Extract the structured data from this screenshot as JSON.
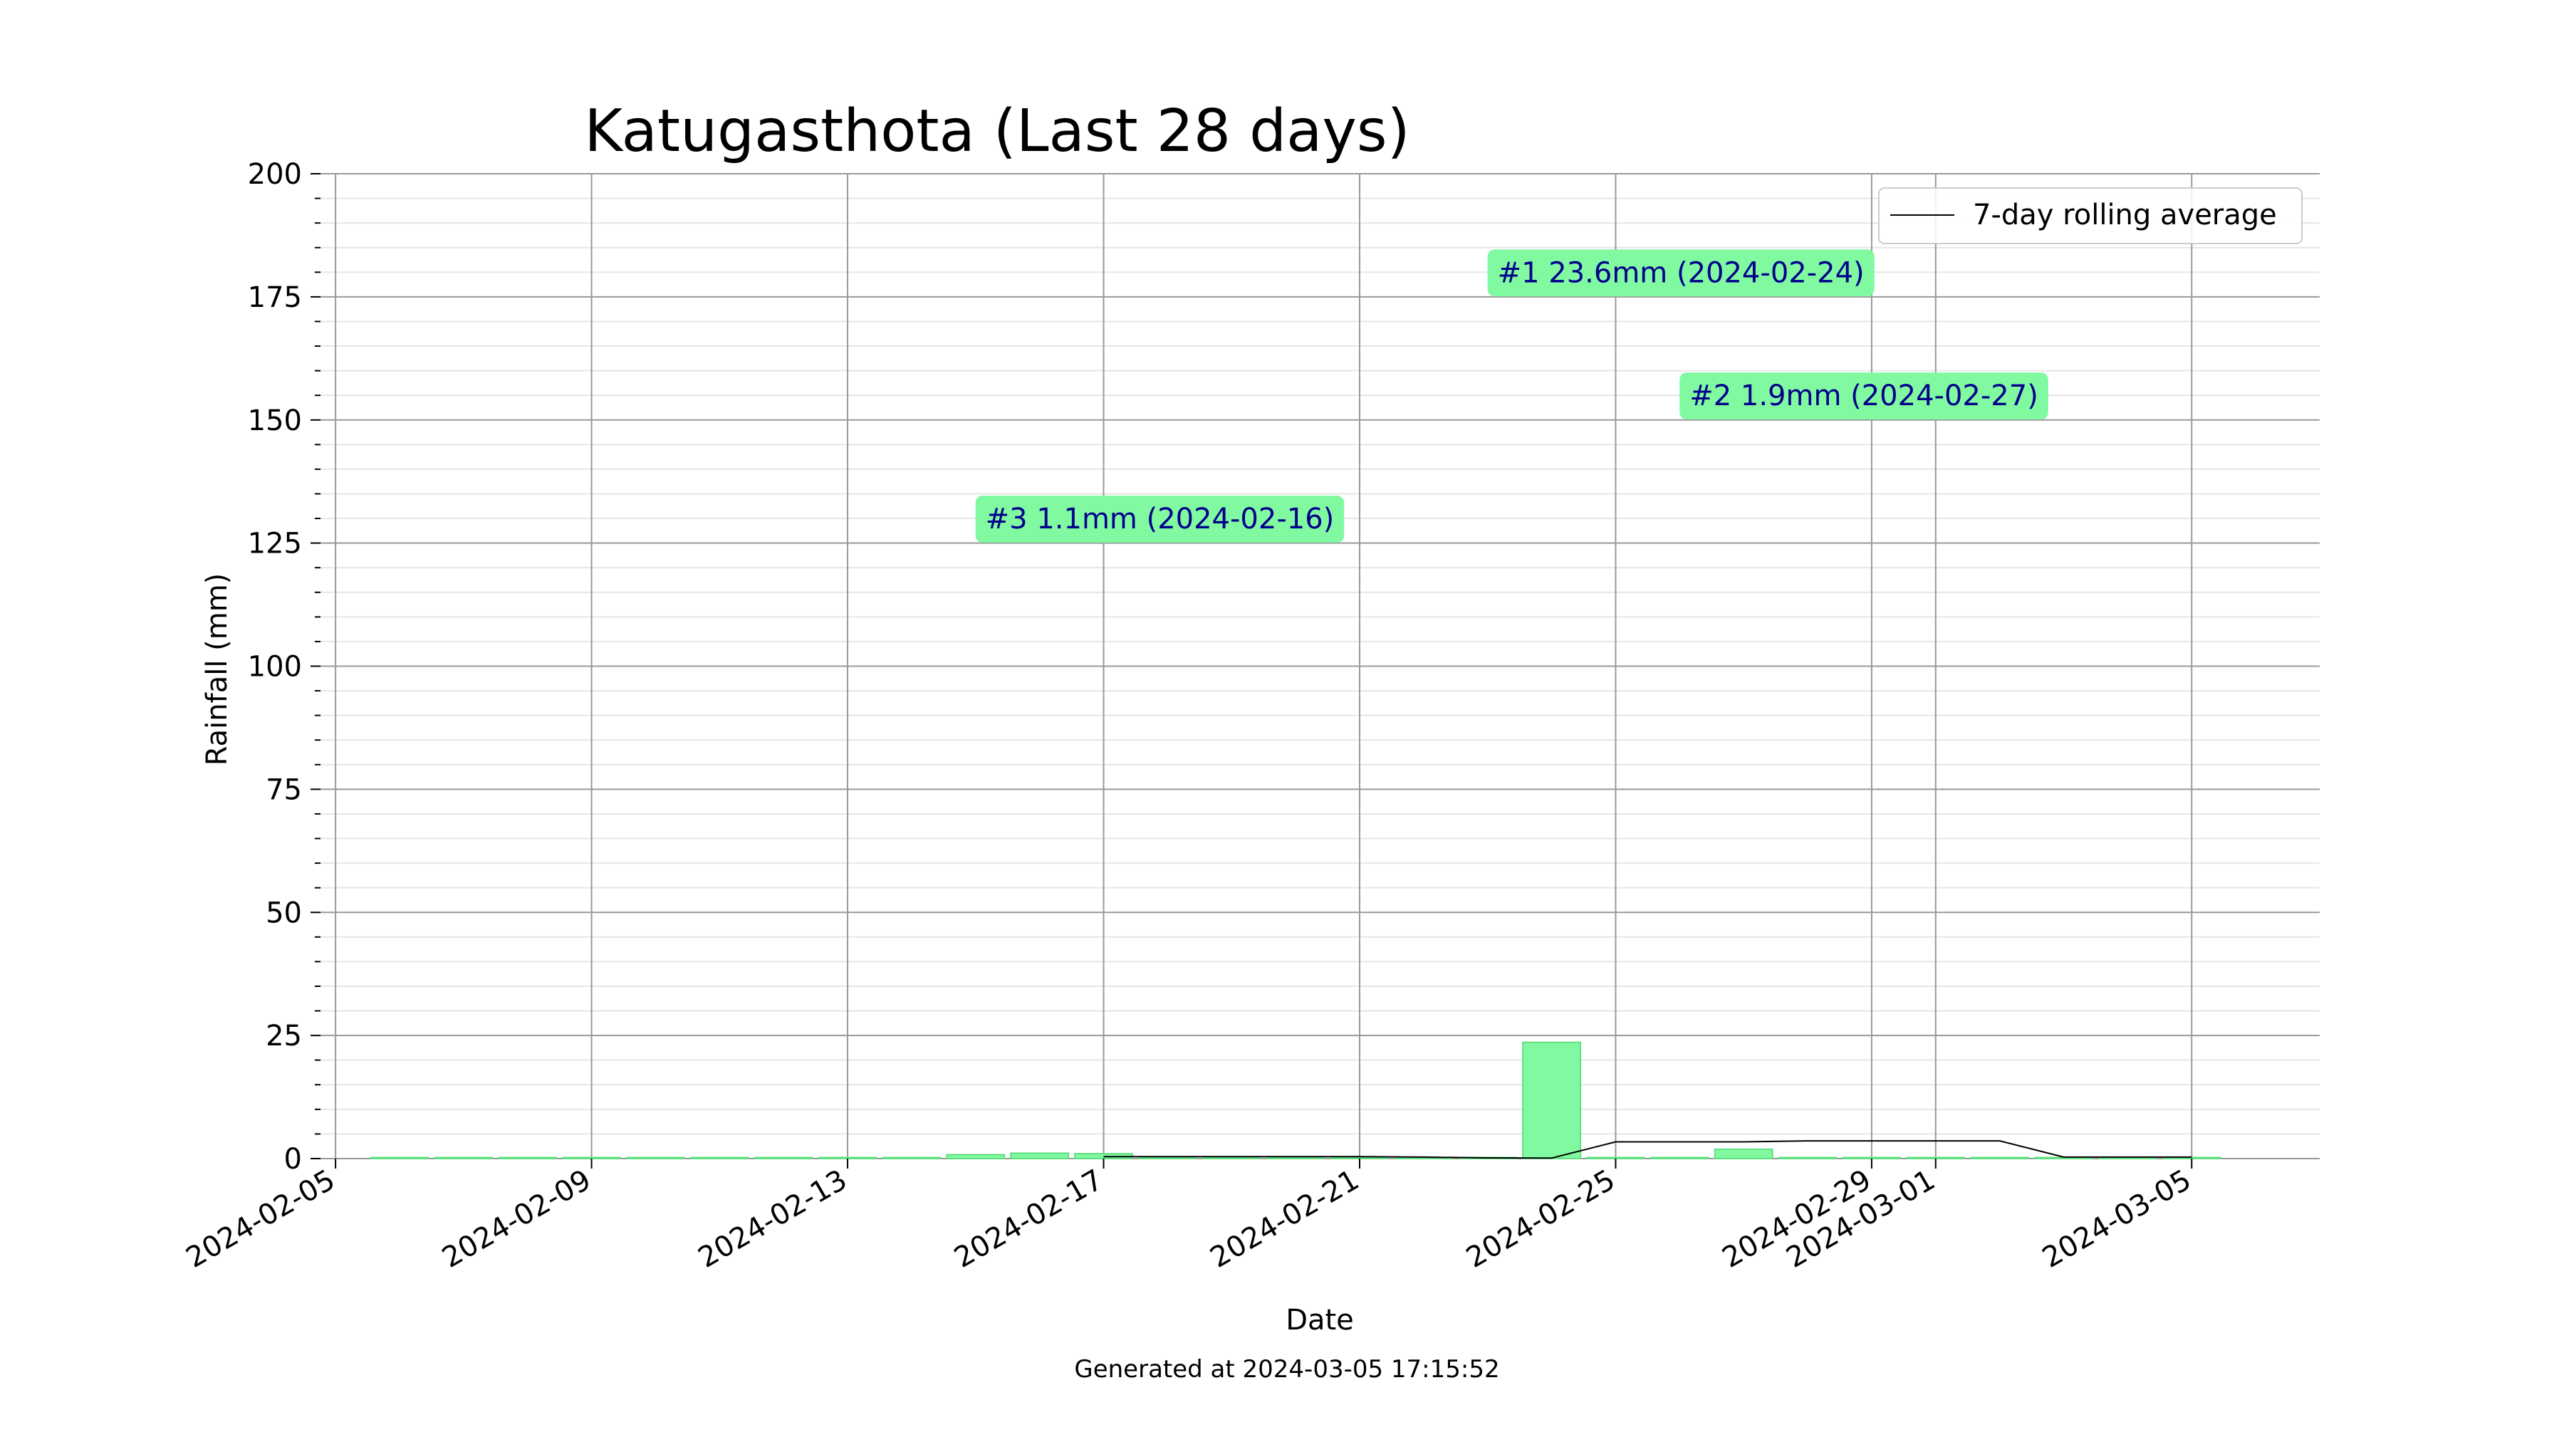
{
  "chart_data": {
    "type": "bar",
    "title": "Katugasthota (Last 28 days)",
    "xlabel": "Date",
    "ylabel": "Rainfall (mm)",
    "footer": "Generated at 2024-03-05 17:15:52",
    "ylim": [
      0,
      200
    ],
    "y_major_ticks": [
      0,
      25,
      50,
      75,
      100,
      125,
      150,
      175,
      200
    ],
    "y_minor_step": 5,
    "xlim": [
      "2024-02-05",
      "2024-03-07"
    ],
    "x_ticks": [
      "2024-02-05",
      "2024-02-09",
      "2024-02-13",
      "2024-02-17",
      "2024-02-21",
      "2024-02-25",
      "2024-02-29",
      "2024-03-01",
      "2024-03-05"
    ],
    "grid": true,
    "legend": {
      "position": "top-right",
      "entries": [
        "7-day rolling average"
      ]
    },
    "colors": {
      "bar_fill": "#80f9a0",
      "bar_edge": "#5fe080",
      "line": "#000000",
      "annotation_bg": "#80f9a0",
      "annotation_text": "#00008b"
    },
    "bars": [
      {
        "date": "2024-02-06",
        "value": 0
      },
      {
        "date": "2024-02-07",
        "value": 0
      },
      {
        "date": "2024-02-08",
        "value": 0
      },
      {
        "date": "2024-02-09",
        "value": 0
      },
      {
        "date": "2024-02-10",
        "value": 0
      },
      {
        "date": "2024-02-11",
        "value": 0
      },
      {
        "date": "2024-02-12",
        "value": 0
      },
      {
        "date": "2024-02-13",
        "value": 0
      },
      {
        "date": "2024-02-14",
        "value": 0
      },
      {
        "date": "2024-02-15",
        "value": 0.8
      },
      {
        "date": "2024-02-16",
        "value": 1.1
      },
      {
        "date": "2024-02-17",
        "value": 1.0
      },
      {
        "date": "2024-02-18",
        "value": 0
      },
      {
        "date": "2024-02-19",
        "value": 0
      },
      {
        "date": "2024-02-20",
        "value": 0
      },
      {
        "date": "2024-02-21",
        "value": 0
      },
      {
        "date": "2024-02-22",
        "value": 0
      },
      {
        "date": "2024-02-23",
        "value": 0
      },
      {
        "date": "2024-02-24",
        "value": 23.6
      },
      {
        "date": "2024-02-25",
        "value": 0
      },
      {
        "date": "2024-02-26",
        "value": 0
      },
      {
        "date": "2024-02-27",
        "value": 1.9
      },
      {
        "date": "2024-02-28",
        "value": 0
      },
      {
        "date": "2024-02-29",
        "value": 0
      },
      {
        "date": "2024-03-01",
        "value": 0
      },
      {
        "date": "2024-03-02",
        "value": 0
      },
      {
        "date": "2024-03-03",
        "value": 0
      },
      {
        "date": "2024-03-04",
        "value": 0
      },
      {
        "date": "2024-03-05",
        "value": 0
      }
    ],
    "series": [
      {
        "name": "7-day rolling average",
        "points": [
          {
            "date": "2024-02-17",
            "value": 0.4
          },
          {
            "date": "2024-02-18",
            "value": 0.4
          },
          {
            "date": "2024-02-19",
            "value": 0.4
          },
          {
            "date": "2024-02-20",
            "value": 0.4
          },
          {
            "date": "2024-02-21",
            "value": 0.4
          },
          {
            "date": "2024-02-22",
            "value": 0.3
          },
          {
            "date": "2024-02-23",
            "value": 0.15
          },
          {
            "date": "2024-02-24",
            "value": 0.1
          },
          {
            "date": "2024-02-25",
            "value": 3.4
          },
          {
            "date": "2024-02-26",
            "value": 3.4
          },
          {
            "date": "2024-02-27",
            "value": 3.4
          },
          {
            "date": "2024-02-28",
            "value": 3.6
          },
          {
            "date": "2024-02-29",
            "value": 3.6
          },
          {
            "date": "2024-03-01",
            "value": 3.6
          },
          {
            "date": "2024-03-02",
            "value": 3.6
          },
          {
            "date": "2024-03-03",
            "value": 0.3
          },
          {
            "date": "2024-03-04",
            "value": 0.3
          },
          {
            "date": "2024-03-05",
            "value": 0.3
          }
        ]
      }
    ],
    "annotations": [
      {
        "text": "#1 23.6mm (2024-02-24)",
        "date": "2024-02-24",
        "value": 180
      },
      {
        "text": "#2 1.9mm (2024-02-27)",
        "date": "2024-02-27",
        "value": 155
      },
      {
        "text": "#3 1.1mm (2024-02-16)",
        "date": "2024-02-16",
        "value": 130
      }
    ]
  }
}
